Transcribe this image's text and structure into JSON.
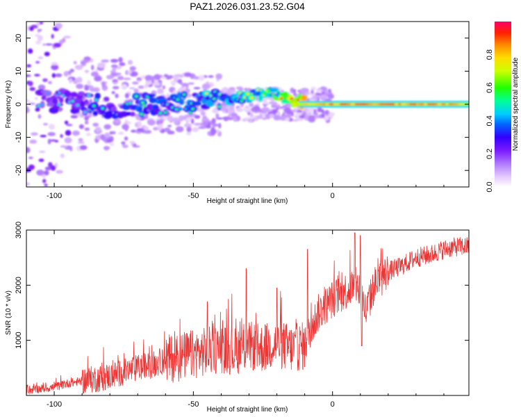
{
  "title": "PAZ1.2026.031.23.52.G04",
  "chart_data": [
    {
      "type": "heatmap",
      "xlabel": "Height of straight line (km)",
      "ylabel": "Frequency (Hz)",
      "xlim": [
        -110,
        49
      ],
      "ylim": [
        -25,
        25
      ],
      "xticks": [
        -100,
        -50,
        0
      ],
      "yticks": [
        20,
        10,
        0,
        -10,
        -20
      ],
      "colorbar": {
        "label": "Normalized spectral amplitude",
        "range": [
          0,
          1
        ],
        "ticks": [
          0.0,
          0.2,
          0.4,
          0.6,
          0.8
        ]
      },
      "ridge": [
        {
          "x": -97,
          "f": 1.0,
          "amp": 0.25
        },
        {
          "x": -90,
          "f": 0.5,
          "amp": 0.3
        },
        {
          "x": -80,
          "f": -1.0,
          "amp": 0.3
        },
        {
          "x": -70,
          "f": -0.5,
          "amp": 0.35
        },
        {
          "x": -60,
          "f": 0.5,
          "amp": 0.35
        },
        {
          "x": -50,
          "f": 0.0,
          "amp": 0.4
        },
        {
          "x": -40,
          "f": 2.0,
          "amp": 0.45
        },
        {
          "x": -30,
          "f": 2.5,
          "amp": 0.5
        },
        {
          "x": -22,
          "f": 3.5,
          "amp": 0.55
        },
        {
          "x": -15,
          "f": 1.0,
          "amp": 0.7
        },
        {
          "x": -5,
          "f": 0.0,
          "amp": 0.85
        },
        {
          "x": 10,
          "f": 0.0,
          "amp": 0.9
        },
        {
          "x": 30,
          "f": 0.0,
          "amp": 0.9
        },
        {
          "x": 49,
          "f": 0.0,
          "amp": 0.8
        }
      ]
    },
    {
      "type": "line",
      "xlabel": "Height of straight line (km)",
      "ylabel": "SNR (10 * v/v)",
      "xlim": [
        -110,
        49
      ],
      "ylim": [
        0,
        3000
      ],
      "xticks": [
        -100,
        -50,
        0
      ],
      "yticks": [
        1000,
        2000,
        3000
      ],
      "series": [
        {
          "color": "#ee3333",
          "x": [
            -110,
            -105,
            -100,
            -95,
            -90,
            -85,
            -80,
            -75,
            -70,
            -65,
            -60,
            -55,
            -50,
            -45,
            -40,
            -35,
            -30,
            -25,
            -20,
            -15,
            -10,
            -8,
            -5,
            -2,
            0,
            5,
            8,
            10,
            12,
            15,
            20,
            25,
            30,
            35,
            40,
            45,
            49
          ],
          "y": [
            100,
            120,
            150,
            220,
            260,
            300,
            350,
            420,
            500,
            550,
            650,
            700,
            750,
            800,
            850,
            800,
            900,
            850,
            950,
            850,
            900,
            1200,
            1500,
            1650,
            1750,
            1900,
            2000,
            1900,
            1500,
            2000,
            2250,
            2350,
            2500,
            2550,
            2650,
            2700,
            2700
          ],
          "spikes": [
            {
              "x": -31,
              "y": 2300
            },
            {
              "x": -9,
              "y": 2650
            },
            {
              "x": 8,
              "y": 2950
            },
            {
              "x": 10,
              "y": 2900
            },
            {
              "x": 10.5,
              "y": 900
            },
            {
              "x": -45,
              "y": 1700
            },
            {
              "x": -20,
              "y": 1950
            }
          ]
        }
      ]
    }
  ]
}
